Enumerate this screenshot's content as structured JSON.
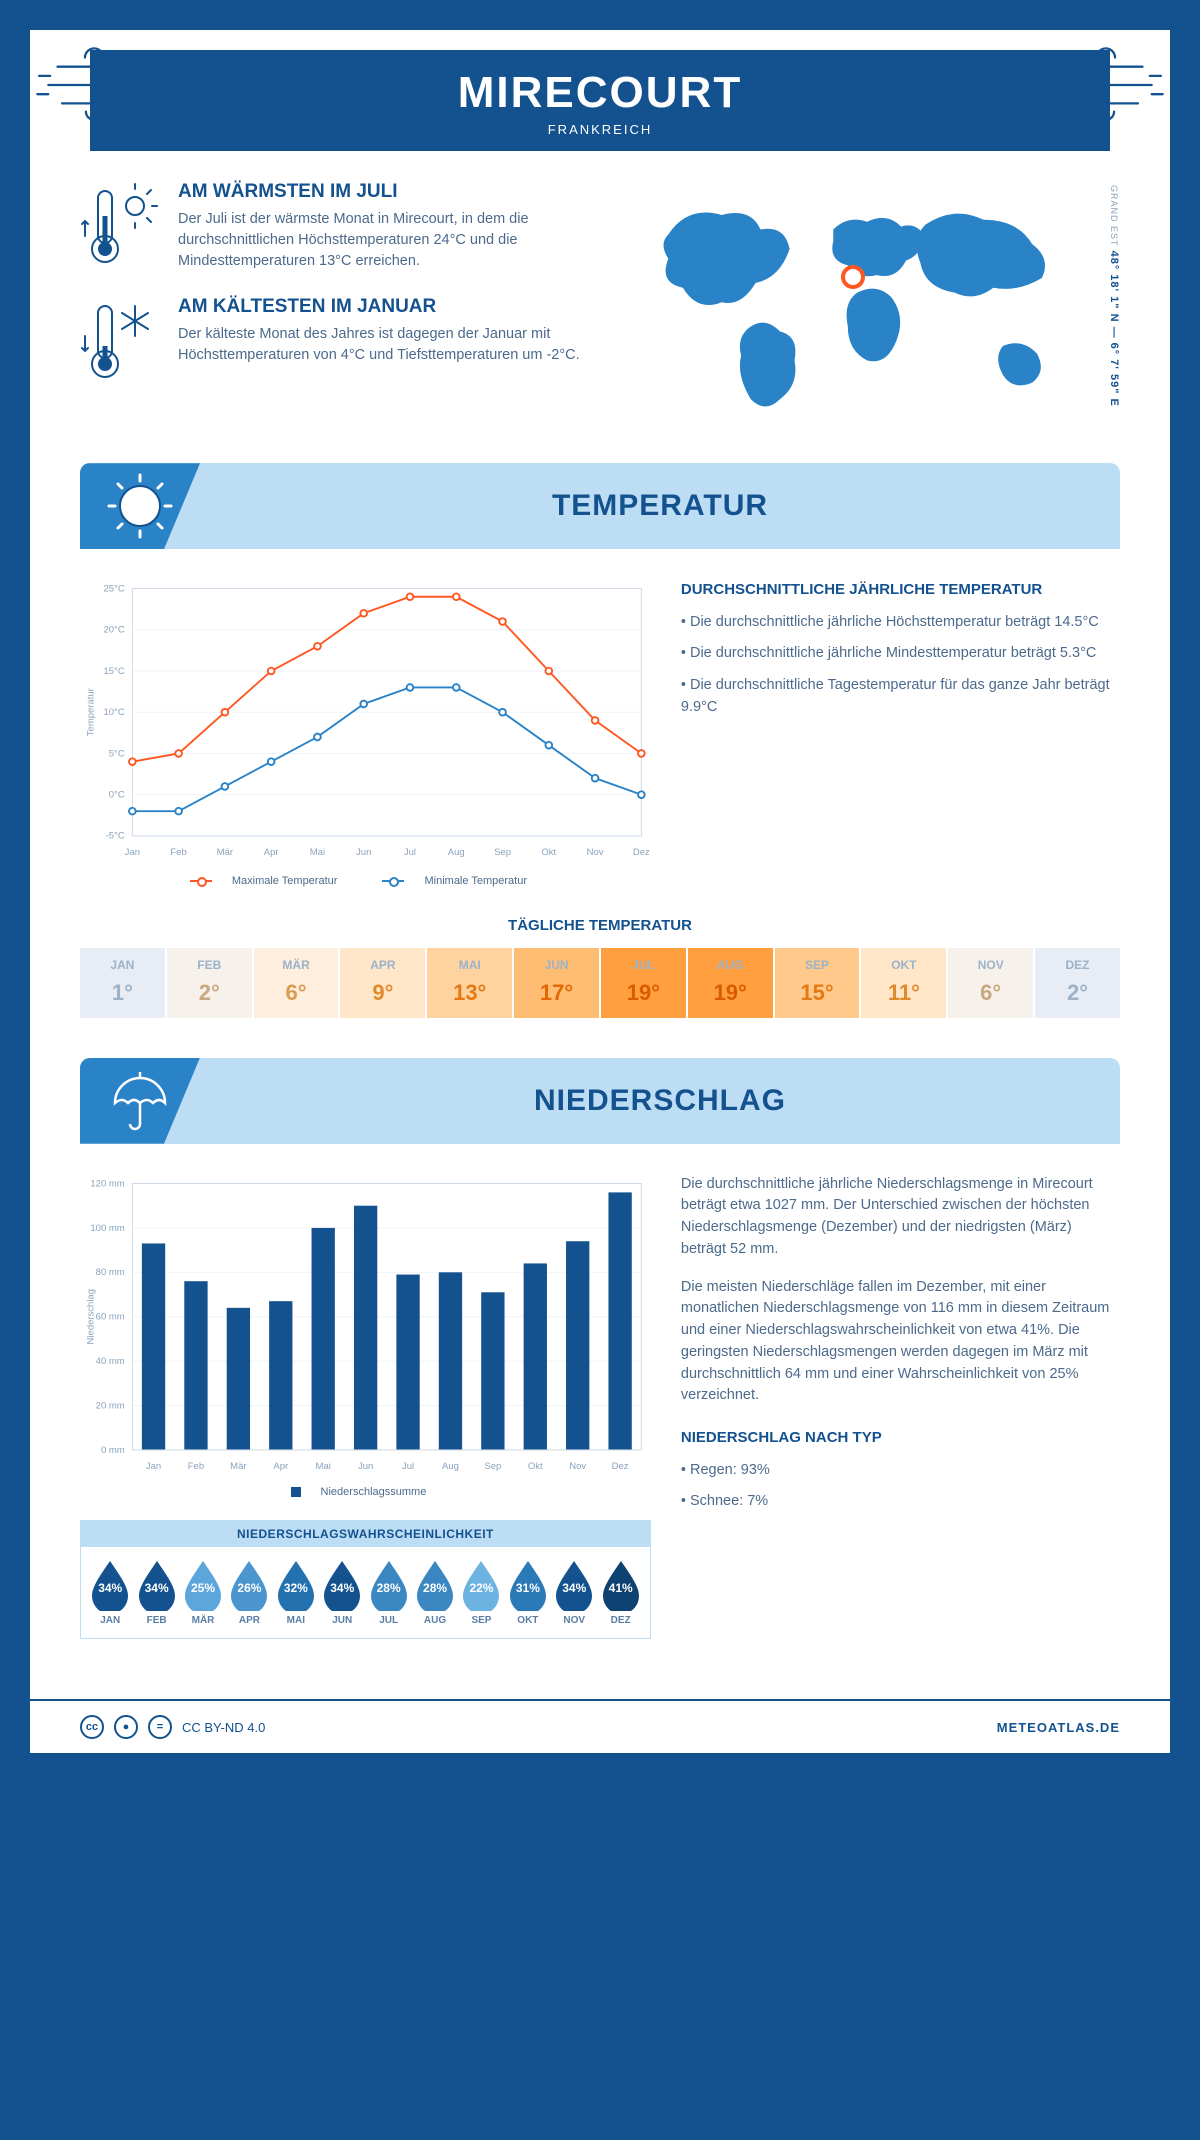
{
  "header": {
    "city": "MIRECOURT",
    "country": "FRANKREICH"
  },
  "coords": {
    "lat_lon": "48° 18' 1\" N — 6° 7' 59\" E",
    "region": "GRAND EST"
  },
  "map_marker": {
    "left_pct": 49,
    "top_pct": 38
  },
  "facts": {
    "warm": {
      "title": "AM WÄRMSTEN IM JULI",
      "text": "Der Juli ist der wärmste Monat in Mirecourt, in dem die durchschnittlichen Höchsttemperaturen 24°C und die Mindesttemperaturen 13°C erreichen."
    },
    "cold": {
      "title": "AM KÄLTESTEN IM JANUAR",
      "text": "Der kälteste Monat des Jahres ist dagegen der Januar mit Höchsttemperaturen von 4°C und Tiefsttemperaturen um -2°C."
    }
  },
  "sections": {
    "temp_title": "TEMPERATUR",
    "precip_title": "NIEDERSCHLAG"
  },
  "temp_chart": {
    "type": "line",
    "months": [
      "Jan",
      "Feb",
      "Mär",
      "Apr",
      "Mai",
      "Jun",
      "Jul",
      "Aug",
      "Sep",
      "Okt",
      "Nov",
      "Dez"
    ],
    "max": [
      4,
      5,
      10,
      15,
      18,
      22,
      24,
      24,
      21,
      15,
      9,
      5
    ],
    "min": [
      -2,
      -2,
      1,
      4,
      7,
      11,
      13,
      13,
      10,
      6,
      2,
      0
    ],
    "ylim": [
      -5,
      25
    ],
    "ytick_step": 5,
    "max_color": "#ff5722",
    "min_color": "#2a83c7",
    "y_axis_label": "Temperatur",
    "legend_max": "Maximale Temperatur",
    "legend_min": "Minimale Temperatur"
  },
  "temp_desc": {
    "title": "DURCHSCHNITTLICHE JÄHRLICHE TEMPERATUR",
    "items": [
      "• Die durchschnittliche jährliche Höchsttemperatur beträgt 14.5°C",
      "• Die durchschnittliche jährliche Mindesttemperatur beträgt 5.3°C",
      "• Die durchschnittliche Tagestemperatur für das ganze Jahr beträgt 9.9°C"
    ]
  },
  "daily_temp": {
    "title": "TÄGLICHE TEMPERATUR",
    "months": [
      "JAN",
      "FEB",
      "MÄR",
      "APR",
      "MAI",
      "JUN",
      "JUL",
      "AUG",
      "SEP",
      "OKT",
      "NOV",
      "DEZ"
    ],
    "values": [
      "1°",
      "2°",
      "6°",
      "9°",
      "13°",
      "17°",
      "19°",
      "19°",
      "15°",
      "11°",
      "6°",
      "2°"
    ],
    "bg_colors": [
      "#e8ecf4",
      "#f6f1ea",
      "#fdeedd",
      "#ffe6c9",
      "#ffd3a0",
      "#ffbd73",
      "#ff9f3f",
      "#ff9f3f",
      "#ffc98b",
      "#ffe6c9",
      "#f6f1ea",
      "#e8ecf4"
    ],
    "text_colors": [
      "#9bb2c9",
      "#c9a882",
      "#d99a52",
      "#e08a2e",
      "#e57a14",
      "#e36907",
      "#d95c00",
      "#d95c00",
      "#e57a14",
      "#e08a2e",
      "#c9a882",
      "#9bb2c9"
    ]
  },
  "precip_chart": {
    "type": "bar",
    "months": [
      "Jan",
      "Feb",
      "Mär",
      "Apr",
      "Mai",
      "Jun",
      "Jul",
      "Aug",
      "Sep",
      "Okt",
      "Nov",
      "Dez"
    ],
    "values": [
      93,
      76,
      64,
      67,
      100,
      110,
      79,
      80,
      71,
      84,
      94,
      116
    ],
    "ylim": [
      0,
      120
    ],
    "ytick_step": 20,
    "bar_color": "#13528f",
    "y_axis_label": "Niederschlag",
    "legend": "Niederschlagssumme"
  },
  "precip_desc": {
    "p1": "Die durchschnittliche jährliche Niederschlagsmenge in Mirecourt beträgt etwa 1027 mm. Der Unterschied zwischen der höchsten Niederschlagsmenge (Dezember) und der niedrigsten (März) beträgt 52 mm.",
    "p2": "Die meisten Niederschläge fallen im Dezember, mit einer monatlichen Niederschlagsmenge von 116 mm in diesem Zeitraum und einer Niederschlagswahrscheinlichkeit von etwa 41%. Die geringsten Niederschlagsmengen werden dagegen im März mit durchschnittlich 64 mm und einer Wahrscheinlichkeit von 25% verzeichnet.",
    "type_title": "NIEDERSCHLAG NACH TYP",
    "type_items": [
      "• Regen: 93%",
      "• Schnee: 7%"
    ]
  },
  "precip_prob": {
    "title": "NIEDERSCHLAGSWAHRSCHEINLICHKEIT",
    "months": [
      "JAN",
      "FEB",
      "MÄR",
      "APR",
      "MAI",
      "JUN",
      "JUL",
      "AUG",
      "SEP",
      "OKT",
      "NOV",
      "DEZ"
    ],
    "values": [
      "34%",
      "34%",
      "25%",
      "26%",
      "32%",
      "34%",
      "28%",
      "28%",
      "22%",
      "31%",
      "34%",
      "41%"
    ],
    "colors": [
      "#13528f",
      "#13528f",
      "#5ca6db",
      "#4b96cf",
      "#2371af",
      "#13528f",
      "#3a87c2",
      "#3a87c2",
      "#6db3e2",
      "#2a7ab7",
      "#13528f",
      "#0d4273"
    ]
  },
  "footer": {
    "license": "CC BY-ND 4.0",
    "brand": "METEOATLAS.DE"
  },
  "colors": {
    "primary": "#13528f",
    "accent": "#2a83c7",
    "light": "#bdddf4"
  }
}
